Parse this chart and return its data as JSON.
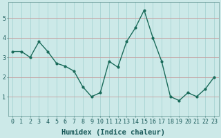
{
  "x": [
    0,
    1,
    2,
    3,
    4,
    5,
    6,
    7,
    8,
    9,
    10,
    11,
    12,
    13,
    14,
    15,
    16,
    17,
    18,
    19,
    20,
    21,
    22,
    23
  ],
  "y": [
    3.3,
    3.3,
    3.0,
    3.8,
    3.3,
    2.7,
    2.55,
    2.3,
    1.5,
    1.0,
    1.2,
    2.8,
    2.5,
    3.8,
    4.5,
    5.4,
    4.0,
    2.8,
    1.0,
    0.8,
    1.2,
    1.0,
    1.4,
    2.0
  ],
  "line_color": "#1a6b5a",
  "marker": "o",
  "marker_size": 2.0,
  "line_width": 1.0,
  "bg_color": "#cce9e8",
  "hgrid_color": "#c4a0a0",
  "vgrid_color": "#a8d4d3",
  "xlabel": "Humidex (Indice chaleur)",
  "xlabel_fontsize": 7.5,
  "tick_fontsize": 6,
  "xlim": [
    -0.5,
    23.5
  ],
  "ylim": [
    0.0,
    5.8
  ],
  "yticks": [
    1,
    2,
    3,
    4,
    5
  ],
  "xticks": [
    0,
    1,
    2,
    3,
    4,
    5,
    6,
    7,
    8,
    9,
    10,
    11,
    12,
    13,
    14,
    15,
    16,
    17,
    18,
    19,
    20,
    21,
    22,
    23
  ]
}
